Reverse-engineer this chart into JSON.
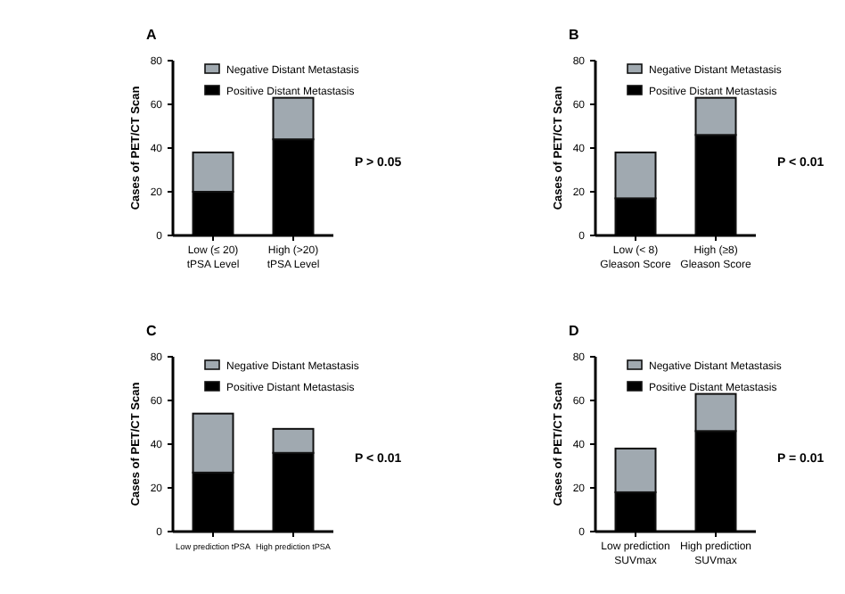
{
  "chart_data": [
    {
      "type": "bar",
      "title": "A",
      "ylabel": "Cases of PET/CT Scan",
      "categories": [
        "Low (≤ 20)\ntPSA Level",
        "High (>20)\ntPSA Level"
      ],
      "stacked": true,
      "ylim": [
        0,
        80
      ],
      "yticks": [
        0,
        20,
        40,
        60,
        80
      ],
      "legend": "top",
      "grid": false,
      "annotations": [
        "P > 0.05"
      ],
      "series": [
        {
          "name": "Positive Distant Metastasis",
          "color": "#000000",
          "values": [
            20,
            44
          ]
        },
        {
          "name": "Negative Distant Metastasis",
          "color": "#a0a9b0",
          "values": [
            18,
            19
          ]
        }
      ]
    },
    {
      "type": "bar",
      "title": "B",
      "ylabel": "Cases of PET/CT Scan",
      "categories": [
        "Low (< 8)\nGleason Score",
        "High (≥8)\nGleason Score"
      ],
      "stacked": true,
      "ylim": [
        0,
        80
      ],
      "yticks": [
        0,
        20,
        40,
        60,
        80
      ],
      "legend": "top",
      "grid": false,
      "annotations": [
        "P < 0.01"
      ],
      "series": [
        {
          "name": "Positive Distant Metastasis",
          "color": "#000000",
          "values": [
            17,
            46
          ]
        },
        {
          "name": "Negative Distant Metastasis",
          "color": "#a0a9b0",
          "values": [
            21,
            17
          ]
        }
      ]
    },
    {
      "type": "bar",
      "title": "C",
      "ylabel": "Cases of PET/CT Scan",
      "categories": [
        "Low prediction tPSA",
        "High prediction tPSA"
      ],
      "stacked": true,
      "ylim": [
        0,
        80
      ],
      "yticks": [
        0,
        20,
        40,
        60,
        80
      ],
      "legend": "top",
      "grid": false,
      "annotations": [
        "P < 0.01"
      ],
      "series": [
        {
          "name": "Positive Distant Metastasis",
          "color": "#000000",
          "values": [
            27,
            36
          ]
        },
        {
          "name": "Negative Distant Metastasis",
          "color": "#a0a9b0",
          "values": [
            27,
            11
          ]
        }
      ]
    },
    {
      "type": "bar",
      "title": "D",
      "ylabel": "Cases of PET/CT Scan",
      "categories": [
        "Low prediction\nSUVmax",
        "High prediction\nSUVmax"
      ],
      "stacked": true,
      "ylim": [
        0,
        80
      ],
      "yticks": [
        0,
        20,
        40,
        60,
        80
      ],
      "legend": "top",
      "grid": false,
      "annotations": [
        "P = 0.01"
      ],
      "series": [
        {
          "name": "Positive Distant Metastasis",
          "color": "#000000",
          "values": [
            18,
            46
          ]
        },
        {
          "name": "Negative Distant Metastasis",
          "color": "#a0a9b0",
          "values": [
            20,
            17
          ]
        }
      ]
    }
  ]
}
